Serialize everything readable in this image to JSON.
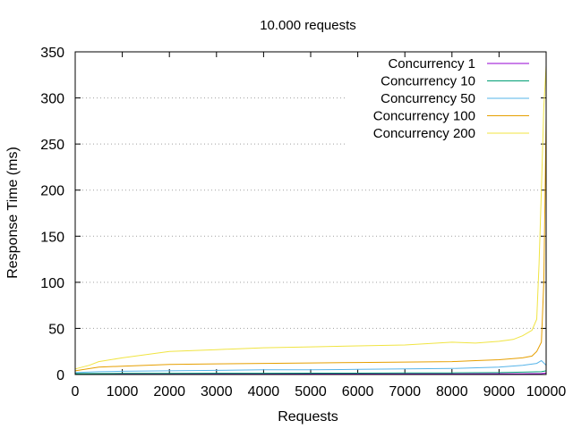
{
  "chart_data": {
    "type": "line",
    "title": "10.000 requests",
    "xlabel": "Requests",
    "ylabel": "Response Time (ms)",
    "xlim": [
      0,
      10000
    ],
    "ylim": [
      0,
      350
    ],
    "x_ticks": [
      0,
      1000,
      2000,
      3000,
      4000,
      5000,
      6000,
      7000,
      8000,
      9000,
      10000
    ],
    "y_ticks": [
      0,
      50,
      100,
      150,
      200,
      250,
      300,
      350
    ],
    "grid": "horizontal-dotted",
    "legend_position": "top-right",
    "series": [
      {
        "name": "Concurrency 1",
        "color": "#9400d3",
        "x": [
          0,
          1000,
          2000,
          3000,
          4000,
          5000,
          6000,
          7000,
          8000,
          9000,
          9500,
          9900,
          10000
        ],
        "y": [
          0.5,
          0.6,
          0.6,
          0.6,
          0.6,
          0.6,
          0.6,
          0.6,
          0.6,
          0.7,
          0.8,
          1,
          1.5
        ]
      },
      {
        "name": "Concurrency 10",
        "color": "#009e73",
        "x": [
          0,
          1000,
          2000,
          3000,
          4000,
          5000,
          6000,
          7000,
          8000,
          9000,
          9500,
          9900,
          10000
        ],
        "y": [
          1,
          1.2,
          1.3,
          1.4,
          1.4,
          1.5,
          1.5,
          1.6,
          1.7,
          2,
          2.5,
          3,
          4
        ]
      },
      {
        "name": "Concurrency 50",
        "color": "#56b4e9",
        "x": [
          0,
          500,
          1000,
          2000,
          3000,
          4000,
          5000,
          6000,
          7000,
          8000,
          9000,
          9500,
          9800,
          9900,
          10000
        ],
        "y": [
          2,
          3,
          3.5,
          4,
          4.5,
          5,
          5,
          5.5,
          6,
          6.5,
          8,
          10,
          12,
          15,
          10
        ]
      },
      {
        "name": "Concurrency 100",
        "color": "#e69f00",
        "x": [
          0,
          500,
          1000,
          2000,
          3000,
          4000,
          5000,
          6000,
          7000,
          8000,
          8500,
          9000,
          9500,
          9700,
          9800,
          9900,
          9950,
          10000
        ],
        "y": [
          4,
          8,
          9,
          11,
          11.5,
          12,
          12.5,
          13,
          13.5,
          14,
          15,
          16,
          18,
          20,
          25,
          35,
          100,
          280
        ]
      },
      {
        "name": "Concurrency 200",
        "color": "#f0e442",
        "x": [
          0,
          300,
          500,
          1000,
          2000,
          3000,
          4000,
          5000,
          6000,
          7000,
          8000,
          8500,
          9000,
          9300,
          9500,
          9700,
          9800,
          9850,
          9900,
          9950,
          10000
        ],
        "y": [
          6,
          10,
          14,
          18,
          25,
          27,
          29,
          30,
          31,
          32,
          35,
          34,
          36,
          38,
          42,
          48,
          60,
          120,
          200,
          290,
          335
        ]
      }
    ]
  }
}
